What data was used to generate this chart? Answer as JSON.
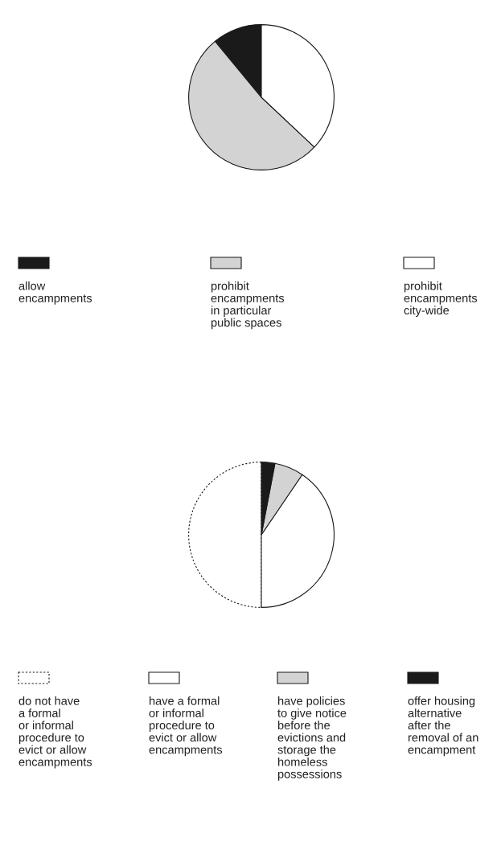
{
  "chart_data": [
    {
      "type": "pie",
      "categories": [
        "allow\nencampments",
        "prohibit\nencampments\nin particular\npublic spaces",
        "prohibit\nencampments\ncity-wide"
      ],
      "values": [
        11,
        52,
        37
      ],
      "colors": [
        "#1a1a1a",
        "#d3d3d3",
        "#ffffff"
      ],
      "legend": "bottom"
    },
    {
      "type": "pie",
      "categories": [
        "do not have\na formal\nor informal\nprocedure to\nevict or allow\nencampments",
        "have a formal\nor informal\nprocedure to\nevict or allow\nencampments",
        "have policies\nto give notice\nbefore the\nevictions and\nstorage the\nhomeless\npossessions",
        "offer housing\nalternative\nafter the\nremoval of an\nencampment"
      ],
      "values": [
        50,
        40.5,
        6.5,
        3
      ],
      "colors": [
        "#ffffff",
        "#ffffff",
        "#d3d3d3",
        "#1a1a1a"
      ],
      "line_style": [
        "dotted",
        "solid",
        "solid",
        "solid"
      ],
      "legend": "bottom"
    }
  ]
}
